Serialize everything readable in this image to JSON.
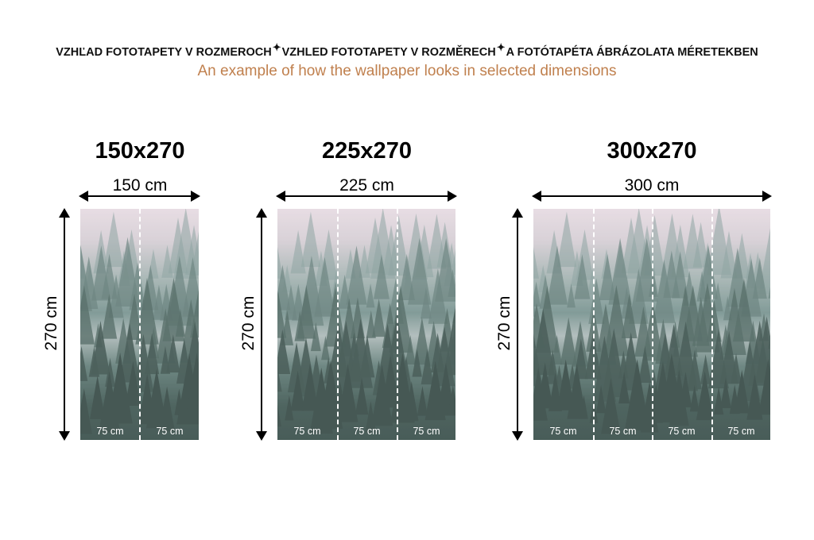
{
  "header": {
    "titles": [
      "VZHĽAD FOTOTAPETY V ROZMEROCH",
      "VZHLED FOTOTAPETY V ROZMĚRECH",
      "A FOTÓTAPÉTA ÁBRÁZOLATA MÉRETEKBEN"
    ],
    "separator_icon": "sparkle-icon",
    "subtitle": "An example of how the wallpaper looks in selected dimensions"
  },
  "colors": {
    "subtitle": "#c0804e",
    "fog": "#e9dde4",
    "forest": "#2f4b44"
  },
  "variants": [
    {
      "title": "150x270",
      "width_label": "150 cm",
      "height_label": "270 cm",
      "panels": [
        "75 cm",
        "75 cm"
      ]
    },
    {
      "title": "225x270",
      "width_label": "225 cm",
      "height_label": "270 cm",
      "panels": [
        "75 cm",
        "75 cm",
        "75 cm"
      ]
    },
    {
      "title": "300x270",
      "width_label": "300 cm",
      "height_label": "270 cm",
      "panels": [
        "75 cm",
        "75 cm",
        "75 cm",
        "75 cm"
      ]
    }
  ]
}
